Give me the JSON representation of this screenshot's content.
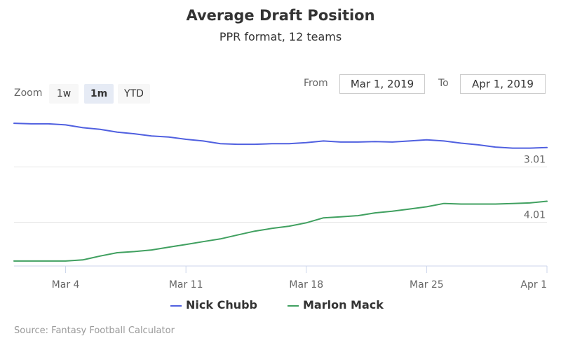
{
  "title": "Average Draft Position",
  "subtitle": "PPR format, 12 teams",
  "zoom": {
    "label": "Zoom",
    "buttons": [
      {
        "label": "1w",
        "active": false
      },
      {
        "label": "1m",
        "active": true
      },
      {
        "label": "YTD",
        "active": false
      }
    ]
  },
  "range": {
    "from_label": "From",
    "from_value": "Mar 1, 2019",
    "to_label": "To",
    "to_value": "Apr 1, 2019"
  },
  "credits": "Source: Fantasy Football Calculator",
  "colors": {
    "nick_chubb": "#5060e0",
    "marlon_mack": "#40a060",
    "grid": "#e6e6e6",
    "axis_text": "#666666"
  },
  "chart_data": {
    "type": "line",
    "x_labels": [
      "Mar 4",
      "Mar 11",
      "Mar 18",
      "Mar 25",
      "Apr 1"
    ],
    "x_range": [
      1,
      32
    ],
    "x_tick_days": [
      4,
      11,
      18,
      25,
      32
    ],
    "y_tick_labels": [
      "3.01",
      "4.01"
    ],
    "y_tick_values": [
      3.01,
      4.01
    ],
    "y_range": [
      2.08,
      4.8
    ],
    "y_reversed": true,
    "legend_position": "bottom-center",
    "grid": true,
    "series": [
      {
        "name": "Nick Chubb",
        "color": "#5060e0",
        "x": [
          1,
          2,
          3,
          4,
          5,
          6,
          7,
          8,
          9,
          10,
          11,
          12,
          13,
          14,
          15,
          16,
          17,
          18,
          19,
          20,
          21,
          22,
          23,
          24,
          25,
          26,
          27,
          28,
          29,
          30,
          31,
          32
        ],
        "values": [
          2.22,
          2.23,
          2.23,
          2.25,
          2.3,
          2.33,
          2.38,
          2.41,
          2.45,
          2.47,
          2.51,
          2.54,
          2.59,
          2.6,
          2.6,
          2.59,
          2.59,
          2.57,
          2.54,
          2.56,
          2.56,
          2.55,
          2.56,
          2.54,
          2.52,
          2.54,
          2.58,
          2.61,
          2.65,
          2.67,
          2.67,
          2.66
        ]
      },
      {
        "name": "Marlon Mack",
        "color": "#40a060",
        "x": [
          1,
          2,
          3,
          4,
          5,
          6,
          7,
          8,
          9,
          10,
          11,
          12,
          13,
          14,
          15,
          16,
          17,
          18,
          19,
          20,
          21,
          22,
          23,
          24,
          25,
          26,
          27,
          28,
          29,
          30,
          31,
          32
        ],
        "values": [
          4.71,
          4.71,
          4.71,
          4.71,
          4.69,
          4.62,
          4.56,
          4.54,
          4.51,
          4.46,
          4.41,
          4.36,
          4.31,
          4.24,
          4.17,
          4.12,
          4.08,
          4.02,
          3.93,
          3.91,
          3.89,
          3.84,
          3.81,
          3.77,
          3.73,
          3.67,
          3.68,
          3.68,
          3.68,
          3.67,
          3.66,
          3.63
        ]
      }
    ]
  }
}
